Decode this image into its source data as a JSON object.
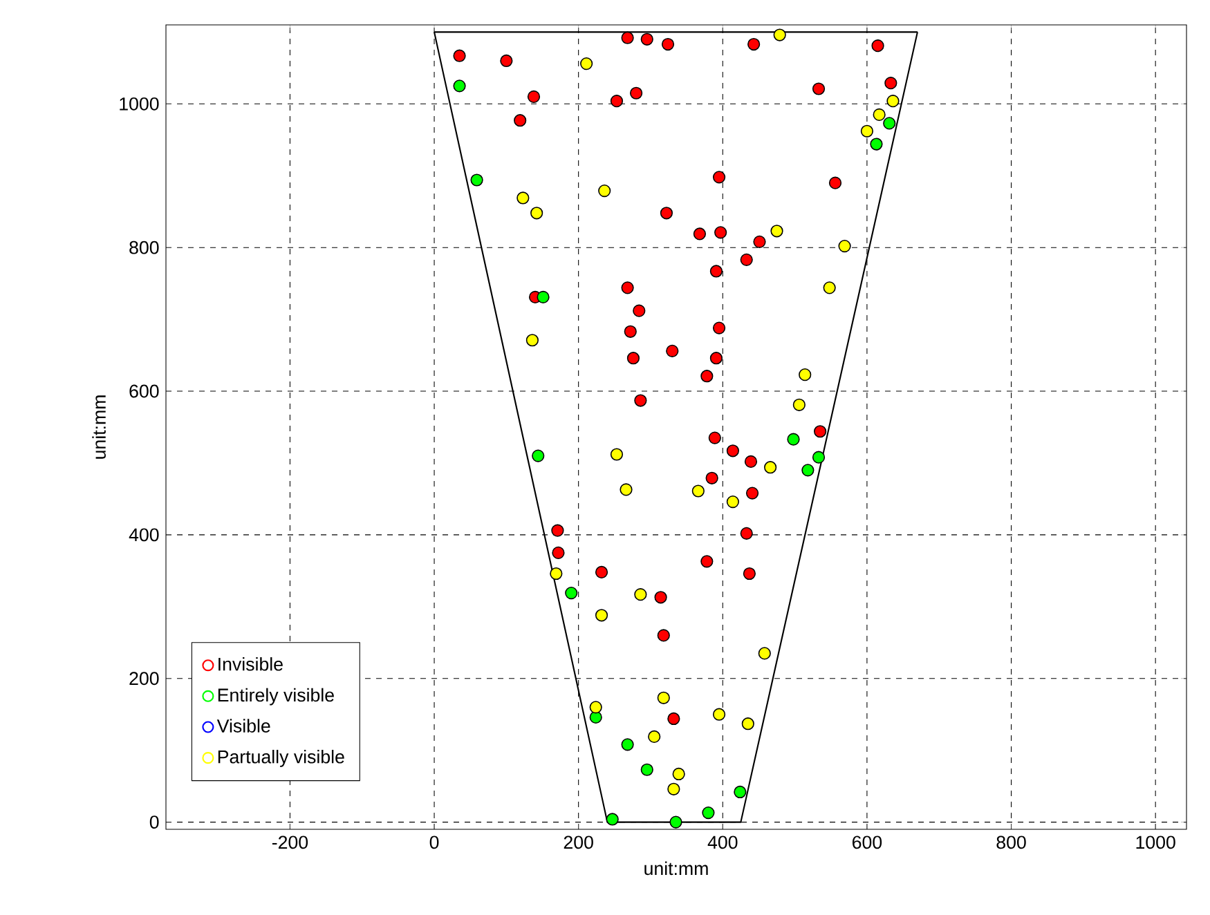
{
  "chart_data": {
    "type": "scatter",
    "xlabel": "unit:mm",
    "ylabel": "unit:mm",
    "xlim": [
      -372,
      1043
    ],
    "ylim": [
      -10,
      1110
    ],
    "xticks": [
      -200,
      0,
      200,
      400,
      600,
      800,
      1000
    ],
    "yticks": [
      0,
      200,
      400,
      600,
      800,
      1000
    ],
    "grid": true,
    "legend": "bottom left",
    "marker": "circle",
    "series": [
      {
        "name": "Invisible",
        "color": "#ff0000",
        "x": [
          35,
          100,
          268,
          295,
          324,
          443,
          615,
          633,
          138,
          119,
          253,
          280,
          533,
          395,
          556,
          322,
          368,
          397,
          451,
          433,
          391,
          268,
          140,
          284,
          272,
          276,
          330,
          395,
          391,
          378,
          286,
          389,
          414,
          439,
          385,
          441,
          535,
          433,
          171,
          172,
          378,
          437,
          232,
          314,
          318,
          332
        ],
        "values": [
          1067,
          1060,
          1092,
          1090,
          1083,
          1083,
          1081,
          1029,
          1010,
          977,
          1004,
          1015,
          1021,
          898,
          890,
          848,
          819,
          821,
          808,
          783,
          767,
          744,
          731,
          712,
          683,
          646,
          656,
          688,
          646,
          621,
          587,
          535,
          517,
          502,
          479,
          458,
          544,
          402,
          406,
          375,
          363,
          346,
          348,
          313,
          260,
          144
        ]
      },
      {
        "name": "Entirely visible",
        "color": "#00ff00",
        "x": [
          35,
          59,
          151,
          144,
          613,
          631,
          498,
          533,
          518,
          190,
          224,
          268,
          295,
          424,
          380,
          335,
          247
        ],
        "values": [
          1025,
          894,
          731,
          510,
          944,
          973,
          533,
          508,
          490,
          319,
          146,
          108,
          73,
          42,
          13,
          0,
          4
        ]
      },
      {
        "name": "Visible",
        "color": "#0000ff"
      },
      {
        "name": "Partually visible",
        "color": "#ffff00",
        "x": [
          479,
          211,
          636,
          617,
          600,
          236,
          123,
          142,
          475,
          569,
          548,
          136,
          514,
          506,
          253,
          466,
          266,
          366,
          414,
          169,
          286,
          232,
          458,
          318,
          395,
          435,
          224,
          305,
          339,
          332
        ],
        "values": [
          1096,
          1056,
          1004,
          985,
          962,
          879,
          869,
          848,
          823,
          802,
          744,
          671,
          623,
          581,
          512,
          494,
          463,
          461,
          446,
          346,
          317,
          288,
          235,
          173,
          150,
          137,
          160,
          119,
          67,
          46
        ]
      },
      {
        "type": "line",
        "color": "#000000",
        "marker": "none",
        "x": [
          0,
          240,
          425,
          670
        ],
        "values": [
          1100,
          0,
          0,
          1100
        ]
      },
      {
        "type": "line",
        "color": "#000000",
        "marker": "none",
        "x": [
          0,
          670
        ],
        "values": [
          1100,
          1100
        ]
      }
    ]
  }
}
